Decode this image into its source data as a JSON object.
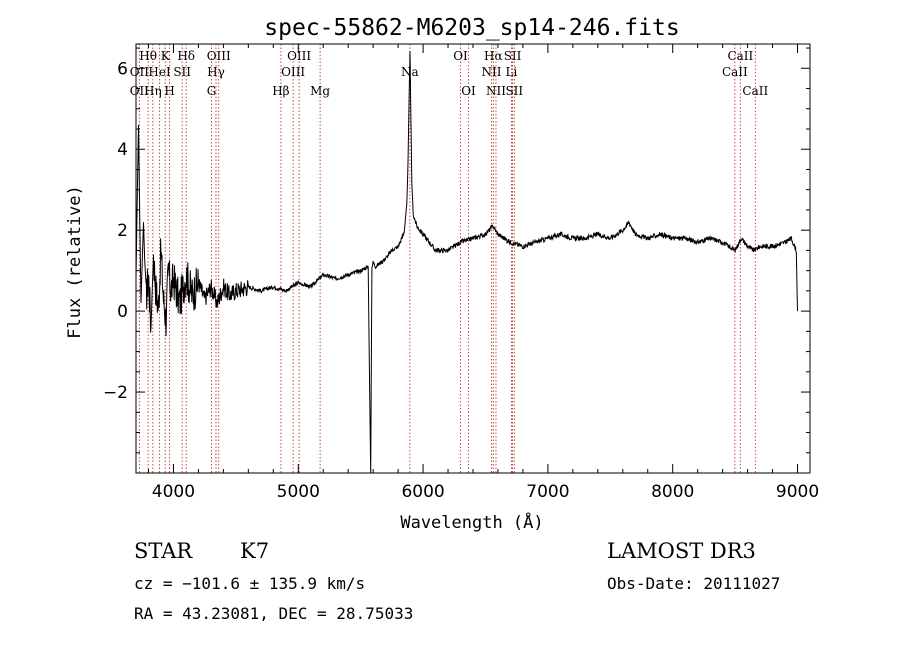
{
  "chart_data": {
    "type": "line",
    "title": "spec-55862-M6203_sp14-246.fits",
    "xlabel": "Wavelength (Å)",
    "ylabel": "Flux (relative)",
    "xlim": [
      3700,
      9100
    ],
    "ylim": [
      -4,
      6.6
    ],
    "xticks": [
      4000,
      5000,
      6000,
      7000,
      8000,
      9000
    ],
    "xtick_labels": [
      "4000",
      "5000",
      "6000",
      "7000",
      "8000",
      "9000"
    ],
    "yticks": [
      -2,
      0,
      2,
      4,
      6
    ],
    "ytick_labels": [
      "−2",
      "0",
      "2",
      "4",
      "6"
    ],
    "grid": false,
    "line_color": "#000000",
    "marker_color": "#c0392b",
    "series": [
      {
        "name": "spectrum",
        "x": [
          3700,
          3720,
          3740,
          3760,
          3780,
          3800,
          3820,
          3840,
          3860,
          3880,
          3900,
          3920,
          3940,
          3960,
          3980,
          4000,
          4050,
          4100,
          4150,
          4200,
          4250,
          4300,
          4350,
          4400,
          4450,
          4500,
          4600,
          4700,
          4800,
          4900,
          5000,
          5100,
          5200,
          5300,
          5400,
          5500,
          5560,
          5580,
          5590,
          5600,
          5620,
          5700,
          5750,
          5800,
          5830,
          5850,
          5870,
          5880,
          5890,
          5895,
          5900,
          5910,
          5920,
          5950,
          6000,
          6050,
          6100,
          6200,
          6300,
          6400,
          6500,
          6560,
          6600,
          6700,
          6800,
          6900,
          7000,
          7100,
          7200,
          7300,
          7400,
          7500,
          7600,
          7650,
          7700,
          7800,
          7900,
          8000,
          8100,
          8200,
          8300,
          8400,
          8500,
          8550,
          8600,
          8650,
          8700,
          8800,
          8900,
          8950,
          8990,
          9000
        ],
        "y": [
          0.8,
          4.6,
          0.2,
          2.2,
          0.3,
          0.9,
          -0.4,
          1.4,
          0.5,
          0.1,
          1.5,
          0.3,
          -0.2,
          1.0,
          0.5,
          0.8,
          0.2,
          0.9,
          0.4,
          0.7,
          0.3,
          0.6,
          0.2,
          0.6,
          0.4,
          0.5,
          0.6,
          0.5,
          0.6,
          0.5,
          0.7,
          0.6,
          0.9,
          0.8,
          0.9,
          1.0,
          1.1,
          -4.0,
          1.1,
          1.2,
          1.1,
          1.3,
          1.5,
          1.6,
          1.8,
          2.0,
          2.6,
          3.8,
          5.6,
          6.4,
          5.3,
          3.2,
          2.4,
          2.1,
          1.9,
          1.7,
          1.5,
          1.5,
          1.7,
          1.8,
          1.9,
          2.1,
          1.9,
          1.7,
          1.6,
          1.7,
          1.8,
          1.9,
          1.8,
          1.8,
          1.9,
          1.8,
          2.0,
          2.2,
          1.9,
          1.8,
          1.9,
          1.8,
          1.8,
          1.7,
          1.8,
          1.7,
          1.5,
          1.8,
          1.6,
          1.5,
          1.6,
          1.6,
          1.7,
          1.8,
          1.5,
          0.0
        ]
      }
    ],
    "line_markers": [
      {
        "name": "Hθ",
        "x": 3797,
        "row": 0
      },
      {
        "name": "OII",
        "x": 3727,
        "row": 1
      },
      {
        "name": "OII",
        "x": 3727,
        "row": 2
      },
      {
        "name": "Hη",
        "x": 3835,
        "row": 2
      },
      {
        "name": "K",
        "x": 3934,
        "row": 0
      },
      {
        "name": "HeI",
        "x": 3889,
        "row": 1
      },
      {
        "name": "H",
        "x": 3969,
        "row": 2
      },
      {
        "name": "SII",
        "x": 4070,
        "row": 1
      },
      {
        "name": "Hδ",
        "x": 4102,
        "row": 0
      },
      {
        "name": "OIII",
        "x": 4363,
        "row": 0
      },
      {
        "name": "Hγ",
        "x": 4341,
        "row": 1
      },
      {
        "name": "G",
        "x": 4305,
        "row": 2
      },
      {
        "name": "Hβ",
        "x": 4861,
        "row": 2
      },
      {
        "name": "OIII",
        "x": 5007,
        "row": 0
      },
      {
        "name": "OIII",
        "x": 4959,
        "row": 1
      },
      {
        "name": "Mg",
        "x": 5175,
        "row": 2
      },
      {
        "name": "Na",
        "x": 5894,
        "row": 1
      },
      {
        "name": "OI",
        "x": 6300,
        "row": 0
      },
      {
        "name": "OI",
        "x": 6364,
        "row": 2
      },
      {
        "name": "Hα",
        "x": 6563,
        "row": 0
      },
      {
        "name": "NII",
        "x": 6548,
        "row": 1
      },
      {
        "name": "NII",
        "x": 6584,
        "row": 2
      },
      {
        "name": "SII",
        "x": 6717,
        "row": 0
      },
      {
        "name": "Li",
        "x": 6708,
        "row": 1
      },
      {
        "name": "SII",
        "x": 6731,
        "row": 2
      },
      {
        "name": "CaII",
        "x": 8542,
        "row": 0
      },
      {
        "name": "CaII",
        "x": 8498,
        "row": 1
      },
      {
        "name": "CaII",
        "x": 8662,
        "row": 2
      }
    ]
  },
  "info": {
    "object_class": "STAR",
    "subclass": "K7",
    "survey": "LAMOST DR3",
    "redshift": "cz = −101.6 ± 135.9 km/s",
    "obs_date": "Obs-Date: 20111027",
    "coords": "RA =  43.23081, DEC =  28.75033"
  }
}
